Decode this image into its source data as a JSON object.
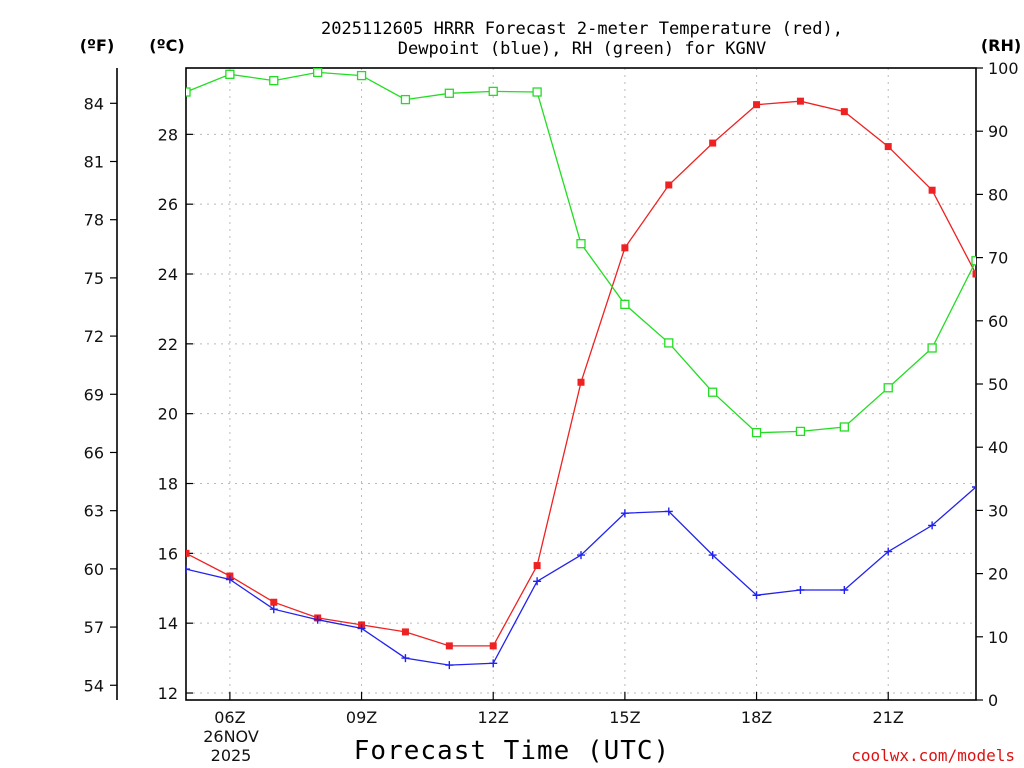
{
  "chart_data": {
    "type": "line",
    "title_line1": "2025112605 HRRR Forecast 2-meter Temperature (red),",
    "title_line2": "Dewpoint (blue), RH (green) for KGNV",
    "xlabel": "Forecast Time (UTC)",
    "credit": "coolwx.com/models",
    "units": {
      "f": "(ºF)",
      "c": "(ºC)",
      "rh": "(RH)"
    },
    "date_line1": "26NOV",
    "date_line2": "2025",
    "x_hours": [
      5,
      6,
      7,
      8,
      9,
      10,
      11,
      12,
      13,
      14,
      15,
      16,
      17,
      18,
      19,
      20,
      21,
      22,
      23
    ],
    "xlim": [
      5,
      23
    ],
    "x_ticks": [
      {
        "hour": 6,
        "label": "06Z"
      },
      {
        "hour": 9,
        "label": "09Z"
      },
      {
        "hour": 12,
        "label": "12Z"
      },
      {
        "hour": 15,
        "label": "15Z"
      },
      {
        "hour": 18,
        "label": "18Z"
      },
      {
        "hour": 21,
        "label": "21Z"
      }
    ],
    "ylim_c": [
      11.8,
      29.9
    ],
    "yticks_c": [
      "12",
      "14",
      "16",
      "18",
      "20",
      "22",
      "24",
      "26",
      "28"
    ],
    "yticks_f": [
      "54",
      "57",
      "60",
      "63",
      "66",
      "69",
      "72",
      "75",
      "78",
      "81",
      "84"
    ],
    "ylim_rh": [
      0,
      100
    ],
    "yticks_rh": [
      "0",
      "10",
      "20",
      "30",
      "40",
      "50",
      "60",
      "70",
      "80",
      "90",
      "100"
    ],
    "series": [
      {
        "name": "Temperature",
        "axis": "c",
        "color": "#ee2222",
        "marker": "filled-square",
        "values": [
          16.0,
          15.35,
          14.6,
          14.15,
          13.95,
          13.75,
          13.35,
          13.35,
          15.65,
          20.9,
          24.75,
          26.55,
          27.75,
          28.85,
          28.95,
          28.65,
          27.65,
          26.4,
          24.0
        ]
      },
      {
        "name": "Dewpoint",
        "axis": "c",
        "color": "#2222ee",
        "marker": "plus",
        "values": [
          15.55,
          15.25,
          14.4,
          14.1,
          13.85,
          13.0,
          12.8,
          12.85,
          15.2,
          15.95,
          17.15,
          17.2,
          15.95,
          14.8,
          14.95,
          14.95,
          16.05,
          16.8,
          17.9
        ]
      },
      {
        "name": "RH",
        "axis": "rh",
        "color": "#22dd22",
        "marker": "hollow-square",
        "values": [
          96.2,
          99.0,
          98.0,
          99.3,
          98.8,
          95.0,
          96.0,
          96.3,
          96.2,
          72.2,
          62.6,
          56.5,
          48.7,
          42.3,
          42.5,
          43.2,
          49.4,
          55.7,
          69.5
        ]
      }
    ]
  }
}
